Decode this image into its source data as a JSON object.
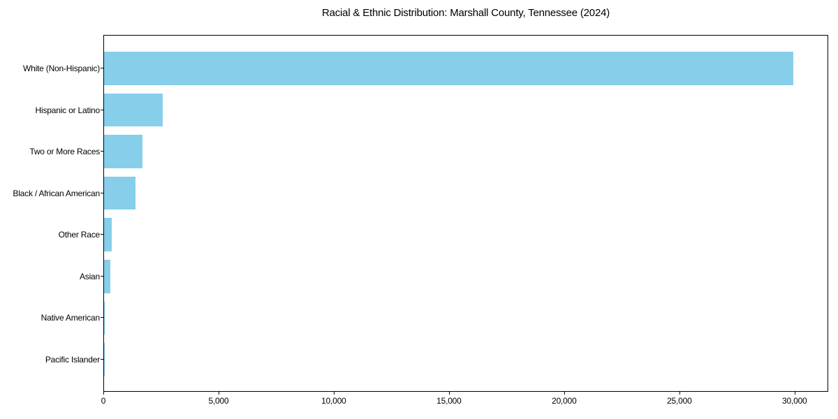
{
  "chart_data": {
    "type": "bar",
    "orientation": "horizontal",
    "title": "Racial & Ethnic Distribution: Marshall County, Tennessee (2024)",
    "categories": [
      "White (Non-Hispanic)",
      "Hispanic or Latino",
      "Two or More Races",
      "Black / African American",
      "Other Race",
      "Asian",
      "Native American",
      "Pacific Islander"
    ],
    "values": [
      29900,
      2550,
      1670,
      1370,
      330,
      270,
      20,
      5
    ],
    "bar_color": "#87CEEB",
    "background_color": "#ffffff",
    "spine_color": "#000000",
    "xlabel": "",
    "ylabel": "",
    "xlim": [
      0,
      31400
    ],
    "xticks": [
      0,
      5000,
      10000,
      15000,
      20000,
      25000,
      30000
    ],
    "xtick_labels": [
      "0",
      "5,000",
      "10,000",
      "15,000",
      "20,000",
      "25,000",
      "30,000"
    ],
    "grid": false,
    "legend": "none"
  }
}
